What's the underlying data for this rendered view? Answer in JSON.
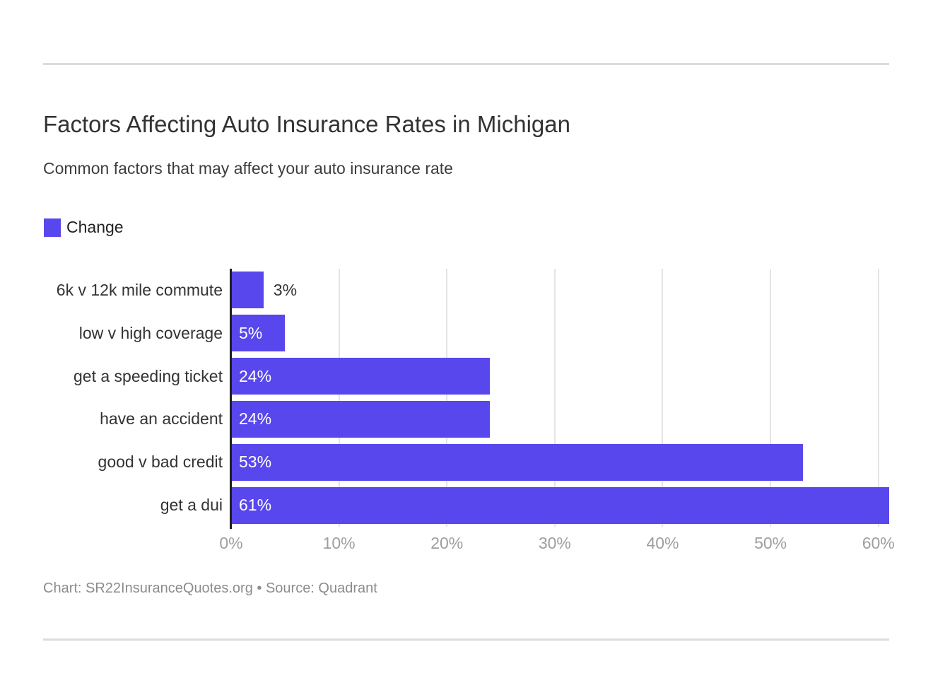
{
  "page": {
    "title": "Factors Affecting Auto Insurance Rates in Michigan",
    "subtitle": "Common factors that may affect your auto insurance rate",
    "footer": "Chart: SR22InsuranceQuotes.org • Source: Quadrant"
  },
  "legend": {
    "label": "Change",
    "swatch_color": "#5847EC"
  },
  "chart_data": {
    "type": "bar",
    "orientation": "horizontal",
    "title": "Factors Affecting Auto Insurance Rates in Michigan",
    "subtitle": "Common factors that may affect your auto insurance rate",
    "series_name": "Change",
    "categories": [
      "6k v 12k mile commute",
      "low v high coverage",
      "get a speeding ticket",
      "have an accident",
      "good v bad credit",
      "get a dui"
    ],
    "values": [
      3,
      5,
      24,
      24,
      53,
      61
    ],
    "value_labels": [
      "3%",
      "5%",
      "24%",
      "24%",
      "53%",
      "61%"
    ],
    "xlabel": "",
    "ylabel": "",
    "x_ticks": [
      0,
      10,
      20,
      30,
      40,
      50,
      60
    ],
    "x_tick_labels": [
      "0%",
      "10%",
      "20%",
      "30%",
      "40%",
      "50%",
      "60%"
    ],
    "xlim": [
      0,
      61
    ],
    "bar_color": "#5847EC",
    "grid": true,
    "gridline_color": "#e4e4e4",
    "legend_position": "top-left",
    "inside_label_min_value": 5
  }
}
